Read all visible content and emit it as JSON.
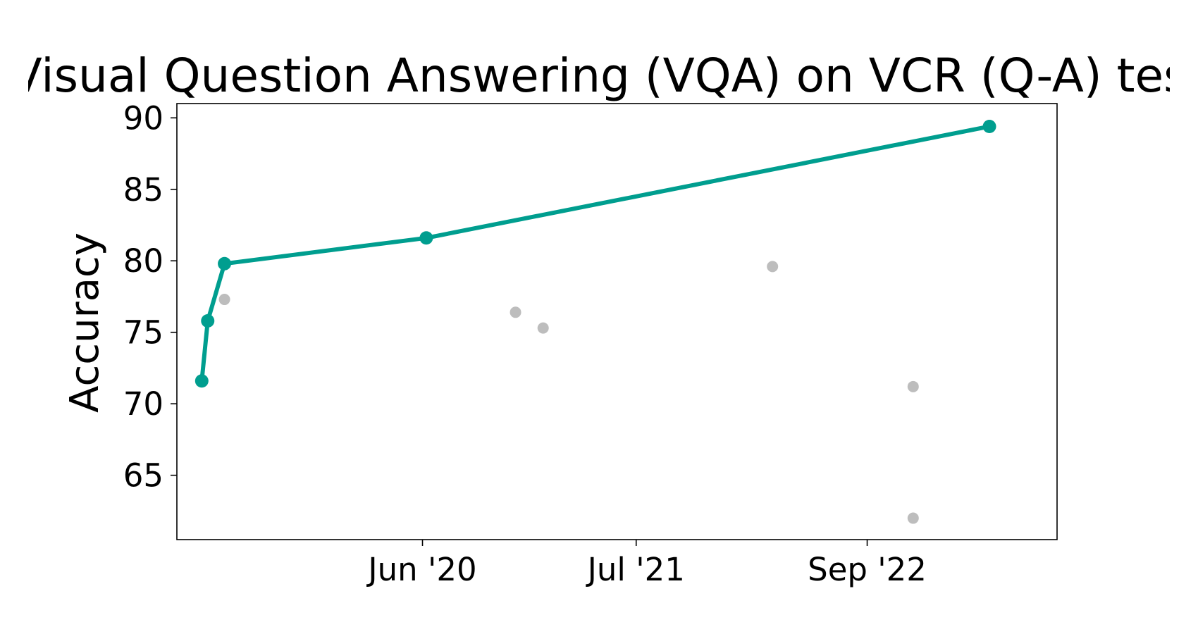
{
  "chart_data": {
    "type": "scatter",
    "title": "Visual Question Answering (VQA) on VCR (Q-A) test",
    "xlabel": "",
    "ylabel": "Accuracy",
    "x_tick_labels": [
      "Jun '20",
      "Jul '21",
      "Sep '22"
    ],
    "x_tick_dates": [
      "2020-06-01",
      "2021-07-01",
      "2022-09-01"
    ],
    "xlim": [
      "2019-03-05",
      "2023-08-18"
    ],
    "y_ticks": [
      "65",
      "70",
      "75",
      "80",
      "85",
      "90"
    ],
    "ylim": [
      60.5,
      91
    ],
    "grid": false,
    "series": [
      {
        "name": "",
        "role": "frontier",
        "color": "#009e8f",
        "points": [
          {
            "x": "2019-04-20",
            "y": 71.6
          },
          {
            "x": "2019-05-01",
            "y": 75.8
          },
          {
            "x": "2019-06-01",
            "y": 79.8
          },
          {
            "x": "2020-06-08",
            "y": 81.6
          },
          {
            "x": "2023-04-15",
            "y": 89.4
          }
        ]
      },
      {
        "name": "",
        "role": "other",
        "color": "#bdbdbd",
        "points": [
          {
            "x": "2019-06-01",
            "y": 77.3
          },
          {
            "x": "2020-11-20",
            "y": 76.4
          },
          {
            "x": "2021-01-10",
            "y": 75.3
          },
          {
            "x": "2022-03-10",
            "y": 79.6
          },
          {
            "x": "2022-11-25",
            "y": 71.2
          },
          {
            "x": "2022-11-25",
            "y": 62.0
          }
        ]
      }
    ]
  }
}
